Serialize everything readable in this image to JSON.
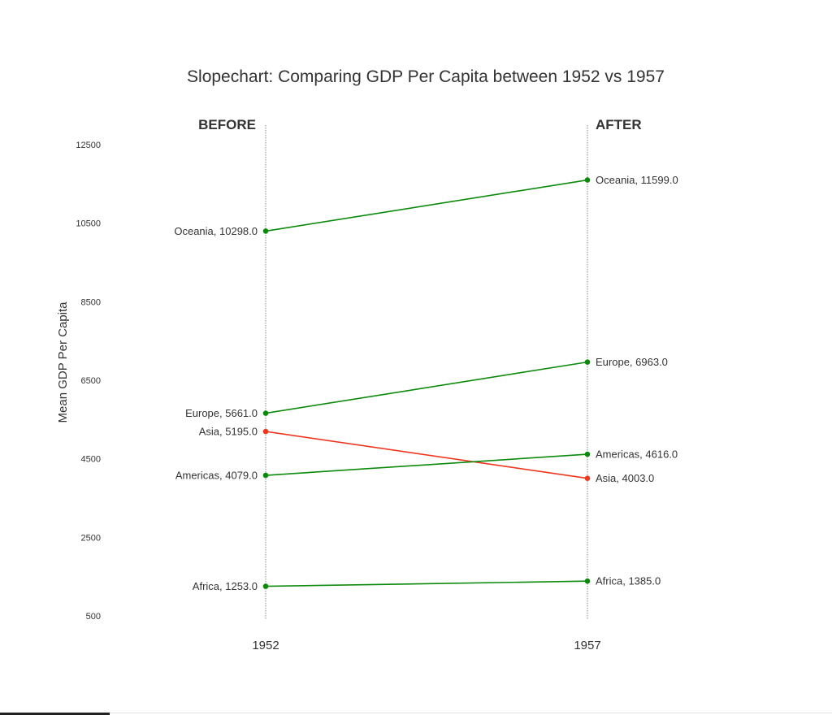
{
  "chart_data": {
    "type": "line",
    "title": "Slopechart: Comparing GDP Per Capita between 1952 vs 1957",
    "ylabel": "Mean GDP Per Capita",
    "xlabel": "",
    "x": [
      "1952",
      "1957"
    ],
    "column_headers": [
      "BEFORE",
      "AFTER"
    ],
    "ylim": [
      500,
      12500
    ],
    "yticks": [
      500,
      2500,
      4500,
      6500,
      8500,
      10500,
      12500
    ],
    "grid": false,
    "series": [
      {
        "name": "Oceania",
        "values": [
          10298.0,
          11599.0
        ],
        "label_before": "Oceania, 10298.0",
        "label_after": "Oceania, 11599.0",
        "color": "#0b8a0b"
      },
      {
        "name": "Europe",
        "values": [
          5661.0,
          6963.0
        ],
        "label_before": "Europe, 5661.0",
        "label_after": "Europe, 6963.0",
        "color": "#0b8a0b"
      },
      {
        "name": "Asia",
        "values": [
          5195.0,
          4003.0
        ],
        "label_before": "Asia, 5195.0",
        "label_after": "Asia, 4003.0",
        "color": "#f0361e"
      },
      {
        "name": "Americas",
        "values": [
          4079.0,
          4616.0
        ],
        "label_before": "Americas, 4079.0",
        "label_after": "Americas, 4616.0",
        "color": "#0b8a0b"
      },
      {
        "name": "Africa",
        "values": [
          1253.0,
          1385.0
        ],
        "label_before": "Africa, 1253.0",
        "label_after": "Africa, 1385.0",
        "color": "#0b8a0b"
      }
    ]
  }
}
